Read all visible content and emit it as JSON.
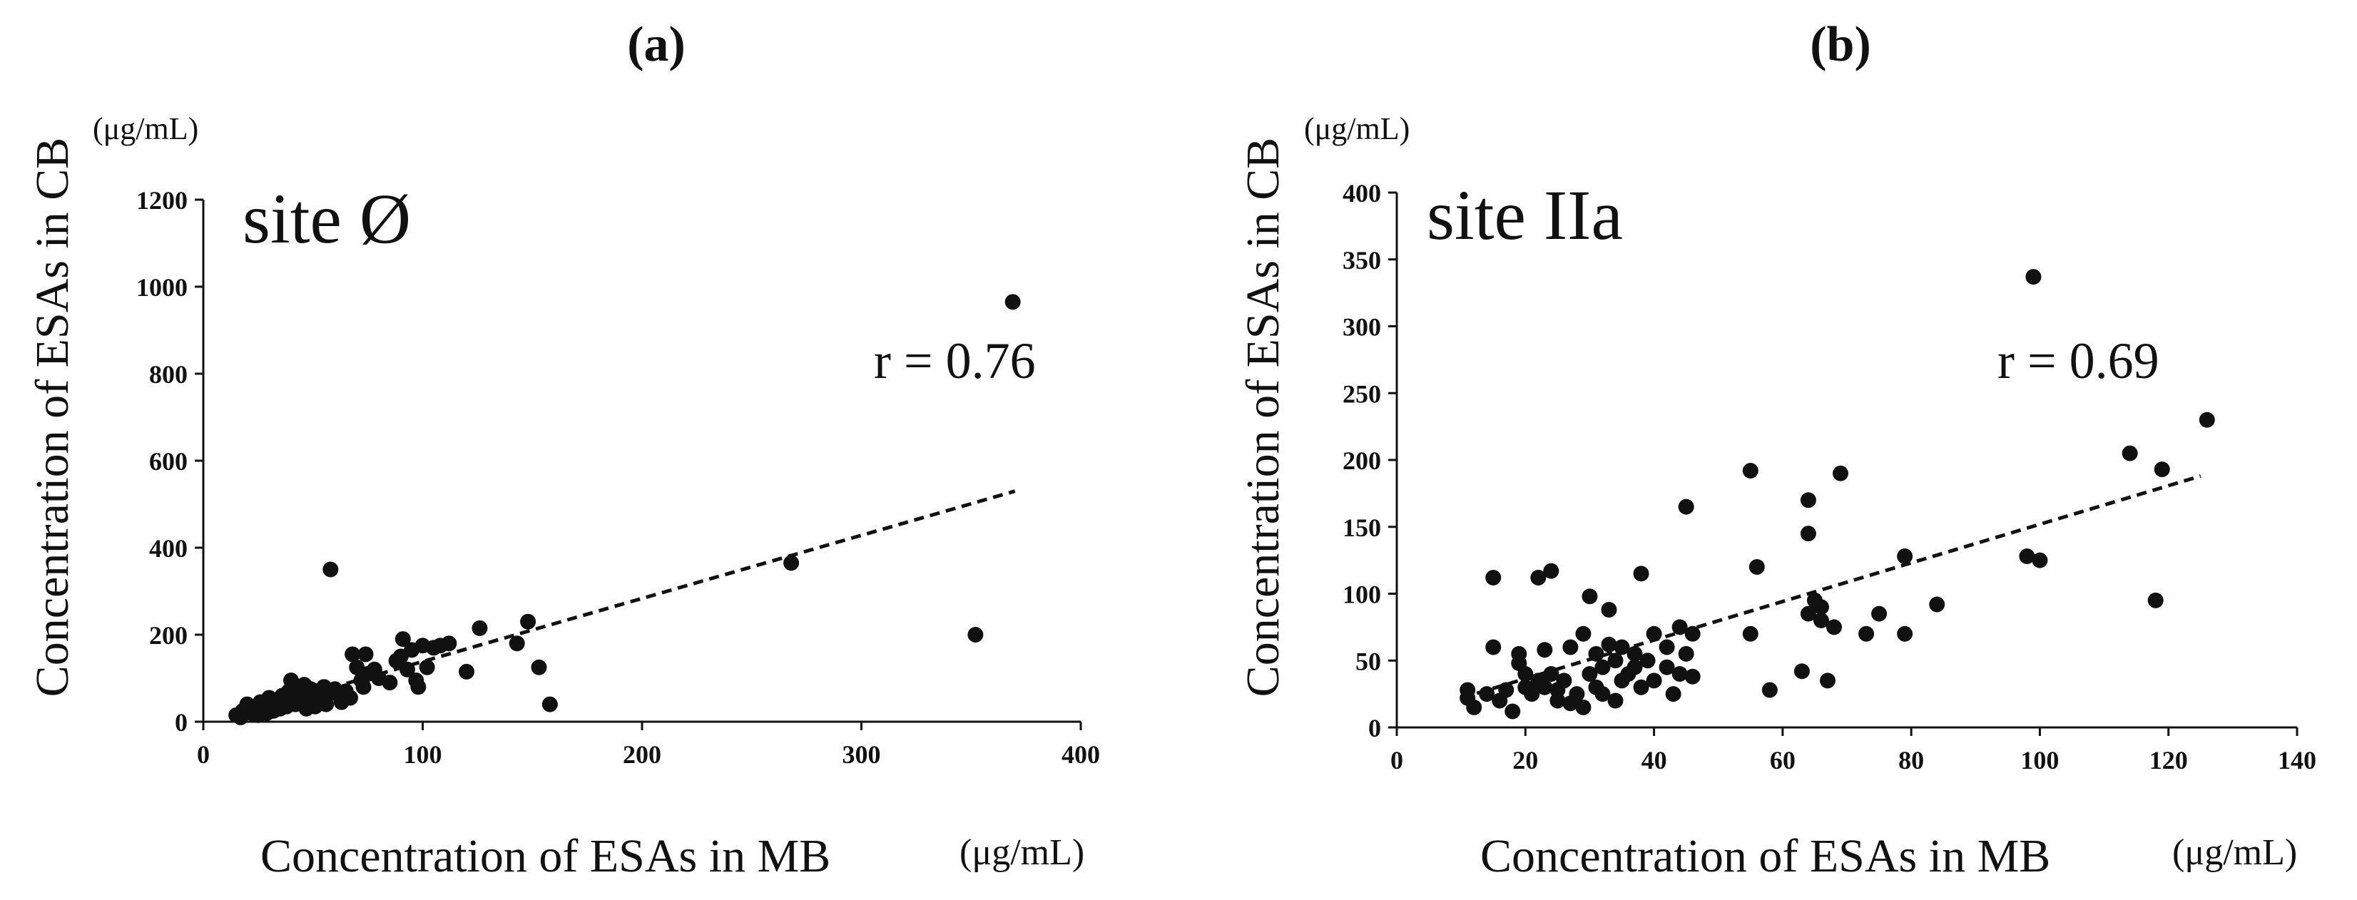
{
  "colors": {
    "ink": "#111111",
    "background": "#ffffff"
  },
  "chart_data": [
    {
      "type": "scatter",
      "panel_label": "(a)",
      "annotation_site": "site Ø",
      "annotation_r": "r = 0.76",
      "xlabel": "Concentration  of ESAs in MB",
      "xunit": "(μg/mL)",
      "ylabel": "Concentration  of ESAs in CB",
      "yunit": "(μg/mL)",
      "xlim": [
        0,
        400
      ],
      "ylim": [
        0,
        1200
      ],
      "xticks": [
        0,
        100,
        200,
        300,
        400
      ],
      "yticks": [
        0,
        200,
        400,
        600,
        800,
        1000,
        1200
      ],
      "trendline": {
        "x": [
          15,
          370
        ],
        "y": [
          15,
          530
        ],
        "style": "dashed"
      },
      "points": [
        [
          15,
          15
        ],
        [
          17,
          10
        ],
        [
          18,
          25
        ],
        [
          20,
          40
        ],
        [
          22,
          20
        ],
        [
          24,
          30
        ],
        [
          25,
          15
        ],
        [
          26,
          45
        ],
        [
          28,
          35
        ],
        [
          29,
          20
        ],
        [
          30,
          55
        ],
        [
          31,
          40
        ],
        [
          32,
          25
        ],
        [
          33,
          50
        ],
        [
          35,
          30
        ],
        [
          36,
          60
        ],
        [
          37,
          45
        ],
        [
          38,
          35
        ],
        [
          39,
          70
        ],
        [
          40,
          95
        ],
        [
          41,
          55
        ],
        [
          42,
          40
        ],
        [
          43,
          80
        ],
        [
          44,
          65
        ],
        [
          45,
          50
        ],
        [
          46,
          85
        ],
        [
          47,
          30
        ],
        [
          48,
          60
        ],
        [
          49,
          75
        ],
        [
          50,
          45
        ],
        [
          51,
          35
        ],
        [
          52,
          70
        ],
        [
          53,
          55
        ],
        [
          55,
          80
        ],
        [
          56,
          40
        ],
        [
          57,
          65
        ],
        [
          58,
          350
        ],
        [
          60,
          75
        ],
        [
          62,
          60
        ],
        [
          63,
          45
        ],
        [
          65,
          70
        ],
        [
          67,
          55
        ],
        [
          68,
          155
        ],
        [
          70,
          125
        ],
        [
          72,
          95
        ],
        [
          73,
          80
        ],
        [
          74,
          155
        ],
        [
          75,
          110
        ],
        [
          78,
          120
        ],
        [
          80,
          100
        ],
        [
          85,
          90
        ],
        [
          88,
          140
        ],
        [
          90,
          150
        ],
        [
          91,
          190
        ],
        [
          93,
          120
        ],
        [
          95,
          165
        ],
        [
          97,
          95
        ],
        [
          98,
          80
        ],
        [
          100,
          175
        ],
        [
          102,
          125
        ],
        [
          105,
          170
        ],
        [
          108,
          175
        ],
        [
          112,
          180
        ],
        [
          120,
          115
        ],
        [
          126,
          215
        ],
        [
          143,
          180
        ],
        [
          148,
          230
        ],
        [
          153,
          125
        ],
        [
          158,
          40
        ],
        [
          268,
          365
        ],
        [
          352,
          200
        ],
        [
          369,
          965
        ]
      ]
    },
    {
      "type": "scatter",
      "panel_label": "(b)",
      "annotation_site": "site IIa",
      "annotation_r": "r = 0.69",
      "xlabel": "Concentration  of ESAs in MB",
      "xunit": "(μg/mL)",
      "ylabel": "Concentration  of ESAs in CB",
      "yunit": "(μg/mL)",
      "xlim": [
        0,
        140
      ],
      "ylim": [
        0,
        400
      ],
      "xticks": [
        0,
        20,
        40,
        60,
        80,
        100,
        120,
        140
      ],
      "yticks": [
        0,
        50,
        100,
        150,
        200,
        250,
        300,
        350,
        400
      ],
      "trendline": {
        "x": [
          10,
          125
        ],
        "y": [
          22,
          188
        ],
        "style": "dashed"
      },
      "points": [
        [
          11,
          28
        ],
        [
          11,
          22
        ],
        [
          12,
          15
        ],
        [
          14,
          25
        ],
        [
          15,
          112
        ],
        [
          15,
          60
        ],
        [
          16,
          20
        ],
        [
          17,
          28
        ],
        [
          18,
          12
        ],
        [
          19,
          55
        ],
        [
          19,
          48
        ],
        [
          20,
          40
        ],
        [
          20,
          30
        ],
        [
          21,
          25
        ],
        [
          22,
          35
        ],
        [
          22,
          112
        ],
        [
          23,
          30
        ],
        [
          23,
          58
        ],
        [
          24,
          117
        ],
        [
          24,
          40
        ],
        [
          25,
          20
        ],
        [
          25,
          28
        ],
        [
          26,
          35
        ],
        [
          27,
          60
        ],
        [
          27,
          18
        ],
        [
          28,
          25
        ],
        [
          29,
          70
        ],
        [
          29,
          15
        ],
        [
          30,
          98
        ],
        [
          30,
          40
        ],
        [
          31,
          30
        ],
        [
          31,
          55
        ],
        [
          32,
          25
        ],
        [
          32,
          45
        ],
        [
          33,
          88
        ],
        [
          33,
          62
        ],
        [
          34,
          50
        ],
        [
          34,
          20
        ],
        [
          35,
          35
        ],
        [
          35,
          60
        ],
        [
          36,
          40
        ],
        [
          37,
          55
        ],
        [
          37,
          45
        ],
        [
          38,
          115
        ],
        [
          38,
          30
        ],
        [
          39,
          50
        ],
        [
          40,
          70
        ],
        [
          40,
          35
        ],
        [
          42,
          45
        ],
        [
          42,
          60
        ],
        [
          43,
          25
        ],
        [
          44,
          75
        ],
        [
          44,
          40
        ],
        [
          45,
          165
        ],
        [
          45,
          55
        ],
        [
          46,
          70
        ],
        [
          46,
          38
        ],
        [
          55,
          70
        ],
        [
          55,
          192
        ],
        [
          56,
          120
        ],
        [
          58,
          28
        ],
        [
          63,
          42
        ],
        [
          64,
          145
        ],
        [
          64,
          170
        ],
        [
          64,
          85
        ],
        [
          65,
          95
        ],
        [
          66,
          90
        ],
        [
          66,
          80
        ],
        [
          67,
          35
        ],
        [
          68,
          75
        ],
        [
          69,
          190
        ],
        [
          73,
          70
        ],
        [
          75,
          85
        ],
        [
          79,
          128
        ],
        [
          79,
          70
        ],
        [
          84,
          92
        ],
        [
          98,
          128
        ],
        [
          99,
          337
        ],
        [
          100,
          125
        ],
        [
          114,
          205
        ],
        [
          118,
          95
        ],
        [
          119,
          193
        ],
        [
          126,
          230
        ]
      ]
    }
  ]
}
